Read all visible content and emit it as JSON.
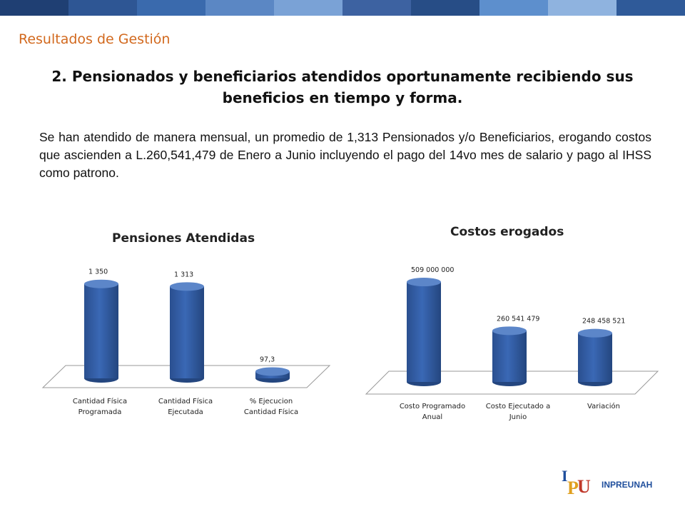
{
  "header": {
    "band_colors": [
      "#1f3f73",
      "#2e5694",
      "#3a6aad",
      "#5b87c4",
      "#7aa2d6",
      "#3d62a1",
      "#274d86",
      "#5d8fcd",
      "#8fb3df",
      "#2f5a99"
    ]
  },
  "section_label": "Resultados de Gestión",
  "heading": "2. Pensionados y beneficiarios atendidos oportunamente recibiendo sus beneficios en tiempo y forma.",
  "paragraph": "Se han atendido de manera mensual, un promedio de 1,313 Pensionados y/o Beneficiarios, erogando costos que ascienden a L.260,541,479 de Enero a Junio incluyendo el pago del 14vo mes de salario y pago al IHSS como patrono.",
  "chart_data": [
    {
      "type": "bar",
      "title": "Pensiones Atendidas",
      "categories": [
        "Cantidad Física\nProgramada",
        "Cantidad Física\nEjecutada",
        "% Ejecucion\nCantidad Física"
      ],
      "values": [
        1350,
        1313,
        97.3
      ],
      "data_labels": [
        "1 350",
        "1 313",
        "97,3"
      ],
      "ylim": [
        0,
        1500
      ],
      "bar_color": "#3a68b5",
      "grid": false,
      "legend": "none"
    },
    {
      "type": "bar",
      "title": "Costos erogados",
      "categories": [
        "Costo Programado\nAnual",
        "Costo Ejecutado a\nJunio",
        "Variación"
      ],
      "values": [
        509000000,
        260541479,
        248458521
      ],
      "data_labels": [
        "509 000 000",
        "260 541 479",
        "248 458 521"
      ],
      "ylim": [
        0,
        600000000
      ],
      "bar_color": "#3a68b5",
      "grid": false,
      "legend": "none"
    }
  ],
  "footer": {
    "brand": "INPREUNAH",
    "logo_letters": "IPU",
    "logo_colors": [
      "#1f4e9c",
      "#e0a020",
      "#c0392b"
    ]
  }
}
